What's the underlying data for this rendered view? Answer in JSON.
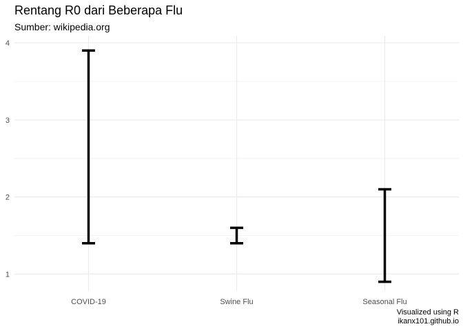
{
  "chart_data": {
    "type": "errorbar",
    "title": "Rentang R0 dari Beberapa Flu",
    "subtitle": "Sumber: wikipedia.org",
    "caption": [
      "Visualized using R",
      "ikanx101.github.io"
    ],
    "xlabel": "",
    "ylabel": "",
    "categories": [
      "COVID-19",
      "Swine Flu",
      "Seasonal Flu"
    ],
    "ranges": [
      {
        "category": "COVID-19",
        "min": 1.4,
        "max": 3.9
      },
      {
        "category": "Swine Flu",
        "min": 1.4,
        "max": 1.6
      },
      {
        "category": "Seasonal Flu",
        "min": 0.9,
        "max": 2.1
      }
    ],
    "y_ticks": [
      1,
      2,
      3,
      4
    ],
    "ylim": [
      0.78,
      4.09
    ],
    "grid": true,
    "colors": {
      "bar": "#000000",
      "grid_major": "#ebebeb",
      "grid_minor": "#f4f4f4"
    }
  }
}
